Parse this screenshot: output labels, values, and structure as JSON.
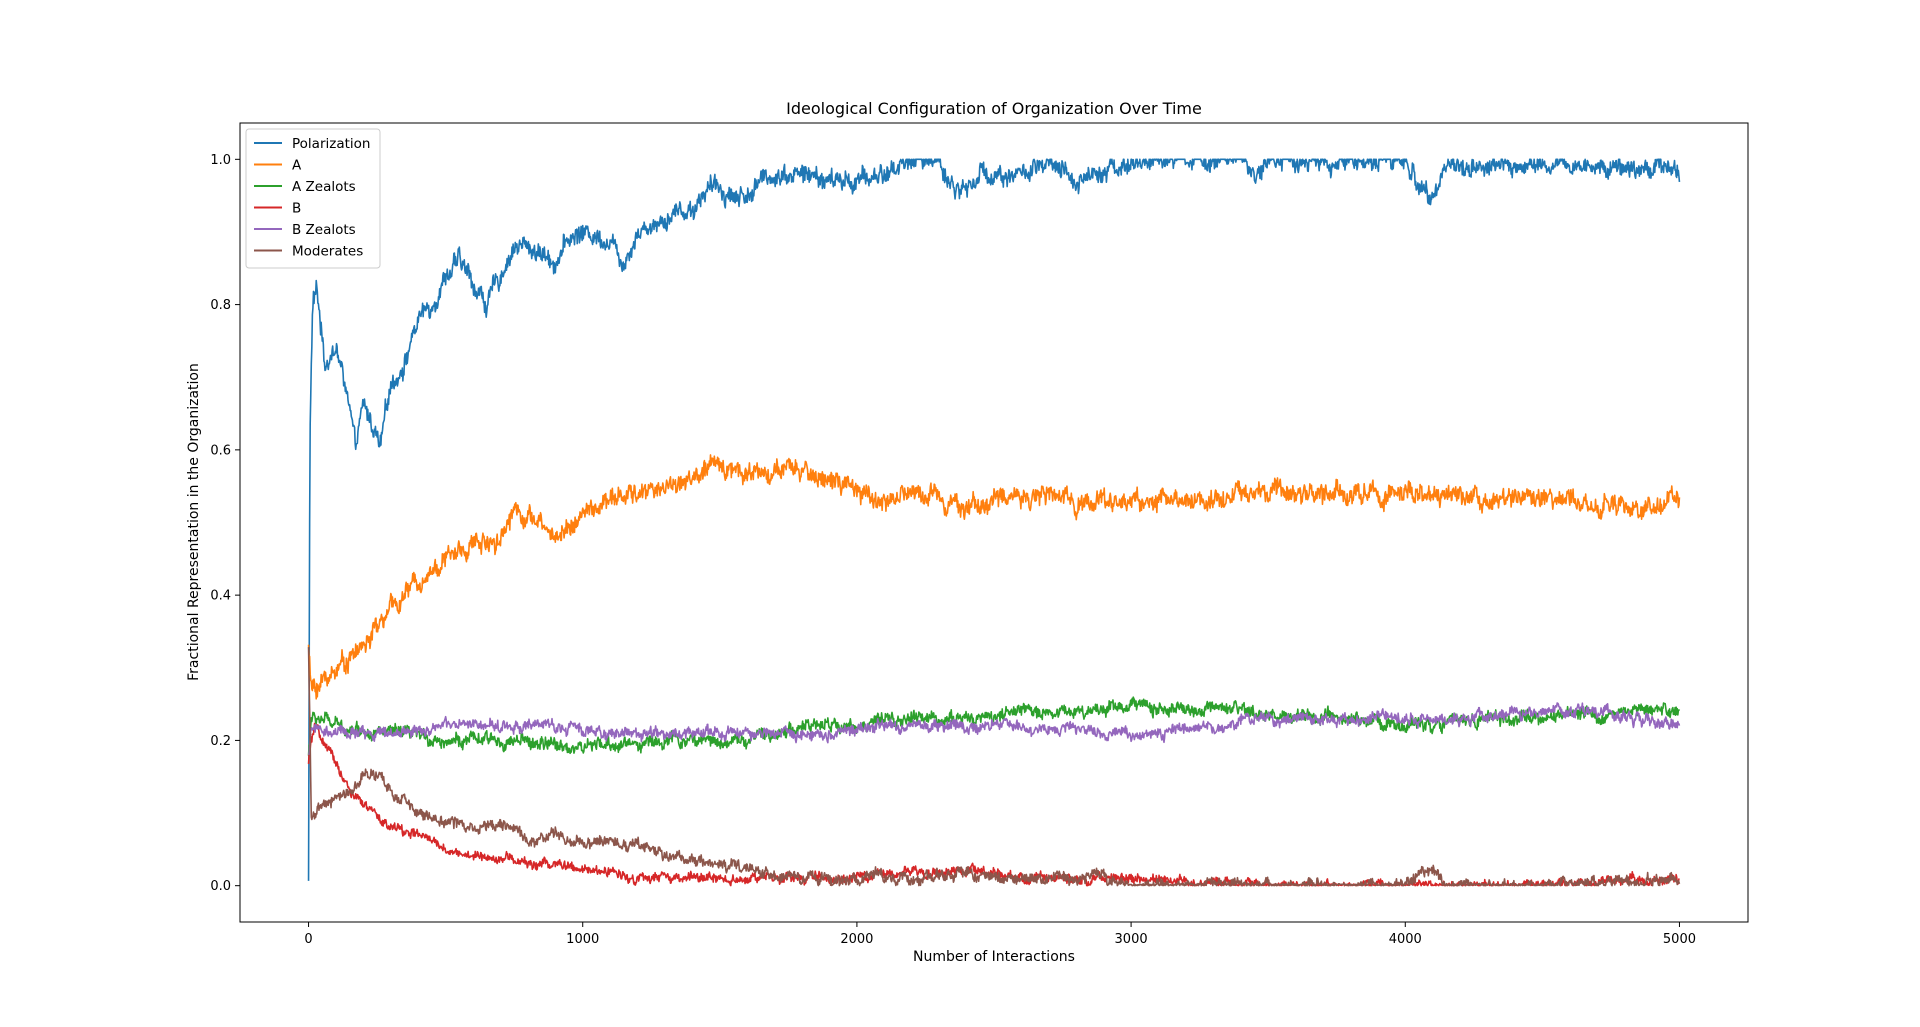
{
  "chart_data": {
    "type": "line",
    "title": "Ideological Configuration of Organization Over Time",
    "xlabel": "Number of Interactions",
    "ylabel": "Fractional Representation in the Organization",
    "xlim": [
      -250,
      5250
    ],
    "ylim": [
      -0.05,
      1.05
    ],
    "xticks": [
      0,
      1000,
      2000,
      3000,
      4000,
      5000
    ],
    "xtick_labels": [
      "0",
      "1000",
      "2000",
      "3000",
      "4000",
      "5000"
    ],
    "yticks": [
      0.0,
      0.2,
      0.4,
      0.6,
      0.8,
      1.0
    ],
    "ytick_labels": [
      "0.0",
      "0.2",
      "0.4",
      "0.6",
      "0.8",
      "1.0"
    ],
    "grid": false,
    "legend_position": "top-left",
    "series": [
      {
        "name": "Polarization",
        "color": "#1f77b4",
        "noise": 0.012,
        "x": [
          0,
          5,
          15,
          30,
          60,
          100,
          140,
          170,
          200,
          240,
          260,
          300,
          350,
          400,
          450,
          500,
          550,
          600,
          650,
          700,
          750,
          800,
          850,
          900,
          950,
          1000,
          1100,
          1150,
          1200,
          1300,
          1350,
          1400,
          1450,
          1500,
          1550,
          1600,
          1650,
          1700,
          1800,
          1900,
          2000,
          2100,
          2200,
          2300,
          2350,
          2400,
          2450,
          2500,
          2600,
          2700,
          2800,
          2900,
          3000,
          3100,
          3200,
          3300,
          3400,
          3450,
          3500,
          3600,
          3700,
          3800,
          3900,
          4000,
          4050,
          4100,
          4150,
          4200,
          4300,
          4500,
          4700,
          4990,
          5000
        ],
        "y": [
          0.01,
          0.62,
          0.8,
          0.82,
          0.72,
          0.74,
          0.68,
          0.6,
          0.66,
          0.63,
          0.6,
          0.69,
          0.72,
          0.78,
          0.8,
          0.84,
          0.86,
          0.83,
          0.8,
          0.84,
          0.88,
          0.88,
          0.87,
          0.86,
          0.89,
          0.9,
          0.89,
          0.86,
          0.9,
          0.92,
          0.93,
          0.93,
          0.96,
          0.96,
          0.95,
          0.95,
          0.97,
          0.98,
          0.98,
          0.97,
          0.97,
          0.98,
          1.0,
          1.0,
          0.96,
          0.96,
          0.98,
          0.98,
          0.98,
          0.99,
          0.97,
          0.99,
          0.99,
          1.0,
          1.0,
          1.0,
          1.0,
          0.98,
          1.0,
          1.0,
          0.99,
          1.0,
          1.0,
          1.0,
          0.96,
          0.96,
          0.99,
          0.99,
          0.99,
          0.99,
          0.99,
          0.99,
          0.98
        ]
      },
      {
        "name": "A",
        "color": "#ff7f0e",
        "noise": 0.012,
        "x": [
          0,
          10,
          50,
          100,
          200,
          300,
          400,
          500,
          600,
          700,
          750,
          800,
          900,
          1000,
          1100,
          1200,
          1300,
          1400,
          1450,
          1500,
          1600,
          1700,
          1800,
          1900,
          2000,
          2100,
          2200,
          2300,
          2400,
          2500,
          2600,
          2800,
          3000,
          3200,
          3400,
          3600,
          3800,
          4000,
          4100,
          4200,
          4400,
          4600,
          4800,
          5000
        ],
        "y": [
          0.33,
          0.27,
          0.28,
          0.3,
          0.33,
          0.38,
          0.42,
          0.45,
          0.47,
          0.48,
          0.52,
          0.51,
          0.48,
          0.51,
          0.53,
          0.54,
          0.55,
          0.56,
          0.57,
          0.58,
          0.57,
          0.57,
          0.57,
          0.56,
          0.54,
          0.53,
          0.54,
          0.54,
          0.52,
          0.53,
          0.54,
          0.53,
          0.53,
          0.53,
          0.54,
          0.54,
          0.54,
          0.54,
          0.53,
          0.54,
          0.53,
          0.53,
          0.52,
          0.53
        ]
      },
      {
        "name": "A Zealots",
        "color": "#2ca02c",
        "noise": 0.008,
        "x": [
          0,
          10,
          50,
          100,
          300,
          500,
          700,
          1000,
          1300,
          1500,
          1600,
          1800,
          2000,
          2200,
          2400,
          2600,
          2800,
          3000,
          3200,
          3400,
          3600,
          3800,
          4000,
          4200,
          4500,
          4800,
          5000
        ],
        "y": [
          0.18,
          0.23,
          0.23,
          0.22,
          0.21,
          0.2,
          0.2,
          0.19,
          0.2,
          0.2,
          0.2,
          0.22,
          0.22,
          0.23,
          0.23,
          0.24,
          0.24,
          0.25,
          0.24,
          0.24,
          0.23,
          0.23,
          0.22,
          0.23,
          0.23,
          0.24,
          0.24
        ]
      },
      {
        "name": "B",
        "color": "#d62728",
        "noise": 0.006,
        "x": [
          0,
          10,
          30,
          60,
          100,
          150,
          200,
          300,
          400,
          500,
          600,
          700,
          800,
          900,
          1000,
          1100,
          1200,
          1400,
          1600,
          1800,
          2000,
          2200,
          2400,
          2600,
          3000,
          3500,
          4000,
          4500,
          5000
        ],
        "y": [
          0.17,
          0.2,
          0.22,
          0.19,
          0.17,
          0.13,
          0.11,
          0.08,
          0.07,
          0.05,
          0.04,
          0.04,
          0.03,
          0.03,
          0.02,
          0.02,
          0.01,
          0.01,
          0.01,
          0.01,
          0.01,
          0.02,
          0.02,
          0.01,
          0.01,
          0.0,
          0.0,
          0.0,
          0.01
        ]
      },
      {
        "name": "B Zealots",
        "color": "#9467bd",
        "noise": 0.007,
        "x": [
          0,
          10,
          50,
          100,
          300,
          500,
          700,
          900,
          1100,
          1300,
          1500,
          1700,
          1900,
          2100,
          2300,
          2500,
          2700,
          2900,
          3100,
          3300,
          3500,
          3700,
          3900,
          4100,
          4300,
          4500,
          4700,
          5000
        ],
        "y": [
          0.18,
          0.22,
          0.21,
          0.21,
          0.21,
          0.22,
          0.22,
          0.22,
          0.21,
          0.21,
          0.21,
          0.21,
          0.21,
          0.22,
          0.22,
          0.22,
          0.22,
          0.21,
          0.21,
          0.22,
          0.23,
          0.23,
          0.23,
          0.23,
          0.23,
          0.24,
          0.24,
          0.22
        ]
      },
      {
        "name": "Moderates",
        "color": "#8c564b",
        "noise": 0.007,
        "x": [
          0,
          10,
          30,
          60,
          100,
          150,
          200,
          250,
          300,
          400,
          500,
          600,
          700,
          800,
          900,
          1000,
          1100,
          1200,
          1300,
          1400,
          1500,
          1600,
          1700,
          1800,
          2000,
          2200,
          2300,
          2400,
          2500,
          2700,
          2900,
          3000,
          3200,
          3500,
          3800,
          4000,
          4050,
          4100,
          4150,
          4200,
          4500,
          5000
        ],
        "y": [
          0.33,
          0.1,
          0.1,
          0.11,
          0.12,
          0.13,
          0.15,
          0.15,
          0.13,
          0.1,
          0.09,
          0.08,
          0.09,
          0.06,
          0.07,
          0.06,
          0.06,
          0.06,
          0.04,
          0.04,
          0.03,
          0.02,
          0.01,
          0.01,
          0.01,
          0.01,
          0.01,
          0.02,
          0.01,
          0.01,
          0.01,
          0.0,
          0.0,
          0.0,
          0.0,
          0.0,
          0.02,
          0.02,
          0.0,
          0.0,
          0.0,
          0.01
        ]
      }
    ]
  }
}
